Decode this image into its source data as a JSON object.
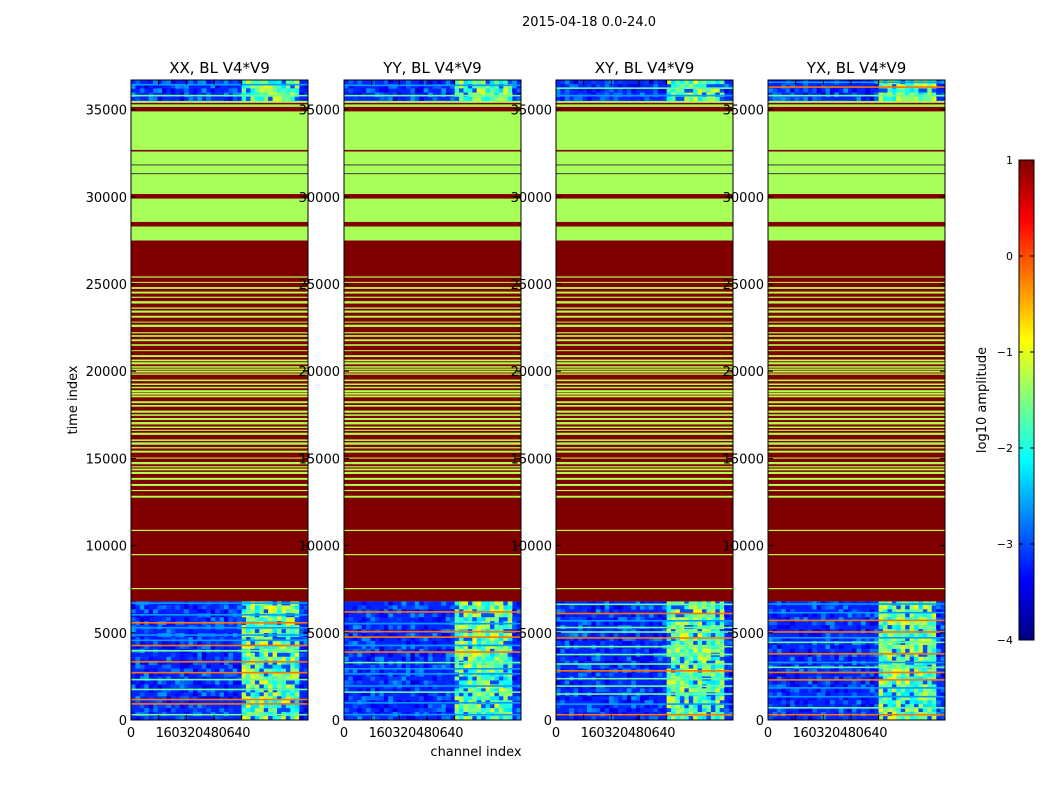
{
  "chart_data": {
    "type": "heatmap",
    "suptitle": "2015-04-18 0.0-24.0",
    "xlabel": "channel index",
    "ylabel": "time index",
    "xticks": [
      "0",
      "160",
      "320",
      "480",
      "640"
    ],
    "xlim": [
      0,
      1024
    ],
    "yticks": [
      0,
      5000,
      10000,
      15000,
      20000,
      25000,
      30000,
      35000
    ],
    "ylim": [
      0,
      36700
    ],
    "panels": [
      {
        "title": "XX, BL V4*V9"
      },
      {
        "title": "YY, BL V4*V9"
      },
      {
        "title": "XY, BL V4*V9"
      },
      {
        "title": "YX, BL V4*V9"
      }
    ],
    "regions": [
      {
        "y0": 0,
        "y1": 6800,
        "level": "noise",
        "value": -3.2
      },
      {
        "y0": 6800,
        "y1": 27500,
        "level": "high",
        "value": 1.0
      },
      {
        "y0": 27500,
        "y1": 35500,
        "level": "mid",
        "value": -1.3
      },
      {
        "y0": 35500,
        "y1": 36700,
        "level": "noise",
        "value": -3.2
      }
    ],
    "rfi_channel_range": [
      640,
      960
    ],
    "colorbar": {
      "label": "log10 amplitude",
      "range": [
        -4,
        1
      ],
      "ticks": [
        "1",
        "0",
        "−1",
        "−2",
        "−3",
        "−4"
      ],
      "colors": [
        "#00007f",
        "#0000ff",
        "#007fff",
        "#00ffff",
        "#7fff7f",
        "#ffff00",
        "#ff7f00",
        "#ff0000",
        "#7f0000"
      ]
    }
  }
}
